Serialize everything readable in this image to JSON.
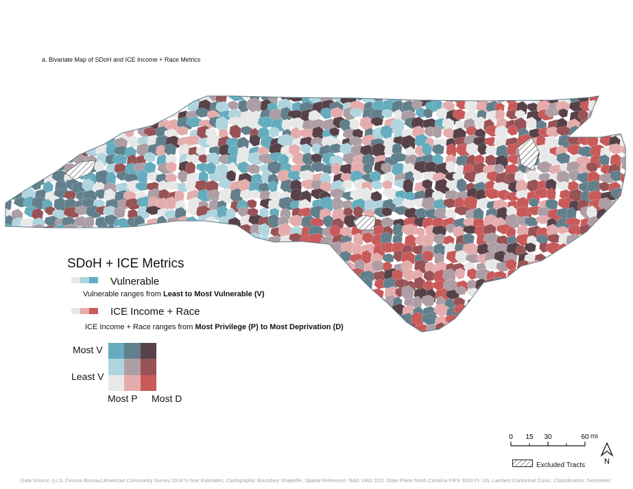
{
  "title": "a. Bivariate Map of SDoH and ICE Income + Race Metrics",
  "legend": {
    "heading": "SDoH + ICE Metrics",
    "vulnerable_label": "Vulnerable",
    "vulnerable_desc_prefix": "Vulnerable ranges from ",
    "vulnerable_desc_bold": "Least to Most Vulnerable (V)",
    "ice_label": "ICE Income + Race",
    "ice_desc_prefix": "ICE Income + Race ranges from ",
    "ice_desc_bold": "Most Privilege (P) to Most Deprivation (D)",
    "vulnerable_ramp": [
      "#e8e8e8",
      "#acd3df",
      "#5fb0c4"
    ],
    "ice_ramp": [
      "#e8e8e8",
      "#e4acac",
      "#c85a5a"
    ],
    "grid_rows": [
      [
        "#64acbe",
        "#627f8c",
        "#574249"
      ],
      [
        "#b0d5df",
        "#ad9ea5",
        "#985356"
      ],
      [
        "#e8e8e8",
        "#e4acac",
        "#c85a5a"
      ]
    ],
    "most_v": "Most V",
    "least_v": "Least V",
    "most_p": "Most P",
    "most_d": "Most D"
  },
  "scale": {
    "ticks": [
      "0",
      "15",
      "30",
      "60"
    ],
    "unit": "mi"
  },
  "excluded_label": "Excluded Tracts",
  "north_label": "N",
  "source": "Data Source: (U.S. Census Bureau) American Community Survey 2018 5-Year Estimates, Cartographic Boundary Shapefile, Spatial Reference: NAD 1983 2011 State Plane North Carolina FIPS 3200 Ft. US, Lambert Conformal Conic, Classification: Geometric"
}
